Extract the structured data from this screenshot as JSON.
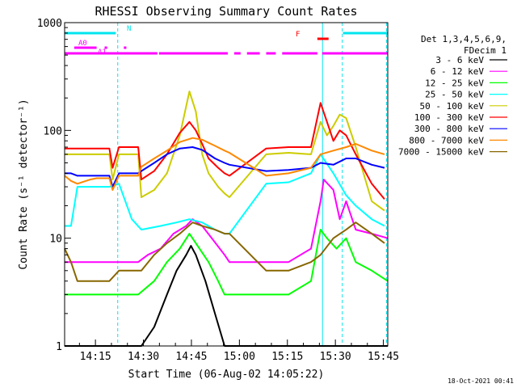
{
  "chart_data": {
    "type": "line",
    "title": "RHESSI Observing Summary Count Rates",
    "xlabel": "Start Time (06-Aug-02 14:05:22)",
    "ylabel": "Count Rate (s⁻¹ detector⁻¹)",
    "x_unit": "minutes after 14:05:22",
    "xlim": [
      0,
      101
    ],
    "ylim": [
      1,
      1000
    ],
    "yscale": "log",
    "grid": false,
    "legend_placement": "right",
    "x_ticks": [
      {
        "value": 9.63,
        "label": "14:15"
      },
      {
        "value": 24.63,
        "label": "14:30"
      },
      {
        "value": 39.63,
        "label": "14:45"
      },
      {
        "value": 54.63,
        "label": "15:00"
      },
      {
        "value": 69.63,
        "label": "15:15"
      },
      {
        "value": 84.63,
        "label": "15:30"
      },
      {
        "value": 99.63,
        "label": "15:45"
      }
    ],
    "y_ticks": [
      {
        "value": 1,
        "label": "1"
      },
      {
        "value": 10,
        "label": "10"
      },
      {
        "value": 100,
        "label": "100"
      },
      {
        "value": 1000,
        "label": "1000"
      }
    ],
    "legend_header": [
      "Det 1,3,4,5,6,9,",
      "FDecim 1"
    ],
    "series": [
      {
        "name": "3 - 6 keV",
        "color": "#000000",
        "values": [
          [
            0,
            1
          ],
          [
            10,
            1
          ],
          [
            24,
            1
          ],
          [
            28,
            1.5
          ],
          [
            32,
            3
          ],
          [
            35,
            5
          ],
          [
            38,
            7
          ],
          [
            39.5,
            8.5
          ],
          [
            41,
            7
          ],
          [
            44,
            4
          ],
          [
            47,
            2
          ],
          [
            50,
            1
          ],
          [
            55,
            1
          ],
          [
            57,
            1
          ],
          [
            78,
            1
          ],
          [
            86,
            1
          ],
          [
            92,
            1
          ],
          [
            101,
            1
          ]
        ]
      },
      {
        "name": "6 - 12 keV",
        "color": "#ff00ff",
        "values": [
          [
            0,
            6
          ],
          [
            8,
            6
          ],
          [
            10,
            6
          ],
          [
            14,
            6
          ],
          [
            23,
            6
          ],
          [
            26,
            7
          ],
          [
            30,
            8
          ],
          [
            34,
            11
          ],
          [
            38,
            13
          ],
          [
            40,
            15
          ],
          [
            43,
            13
          ],
          [
            46,
            10
          ],
          [
            50,
            7
          ],
          [
            51.5,
            6
          ],
          [
            63,
            6
          ],
          [
            70,
            6
          ],
          [
            77,
            8
          ],
          [
            80,
            22
          ],
          [
            81,
            35
          ],
          [
            84,
            28
          ],
          [
            86,
            15
          ],
          [
            88,
            22
          ],
          [
            91,
            12
          ],
          [
            96,
            11
          ],
          [
            101,
            10
          ]
        ]
      },
      {
        "name": "12 - 25 keV",
        "color": "#00ff00",
        "values": [
          [
            0,
            3
          ],
          [
            8,
            3
          ],
          [
            10,
            3
          ],
          [
            14,
            3
          ],
          [
            23,
            3
          ],
          [
            28,
            4
          ],
          [
            32,
            6
          ],
          [
            36,
            8
          ],
          [
            39,
            11
          ],
          [
            41,
            9
          ],
          [
            45,
            6
          ],
          [
            48,
            4
          ],
          [
            50,
            3
          ],
          [
            51.5,
            3
          ],
          [
            63,
            3
          ],
          [
            70,
            3
          ],
          [
            77,
            4
          ],
          [
            80,
            12
          ],
          [
            82,
            10
          ],
          [
            85,
            8
          ],
          [
            88,
            10
          ],
          [
            91,
            6
          ],
          [
            96,
            5
          ],
          [
            101,
            4
          ]
        ]
      },
      {
        "name": "25 - 50 keV",
        "color": "#00ffff",
        "values": [
          [
            0,
            13
          ],
          [
            2,
            13
          ],
          [
            4,
            30
          ],
          [
            8,
            30
          ],
          [
            10,
            30
          ],
          [
            14,
            30
          ],
          [
            17,
            32
          ],
          [
            21,
            15
          ],
          [
            24,
            12
          ],
          [
            30,
            13
          ],
          [
            35,
            14
          ],
          [
            39,
            15
          ],
          [
            43,
            14
          ],
          [
            47,
            12
          ],
          [
            50,
            11
          ],
          [
            51.5,
            11
          ],
          [
            63,
            32
          ],
          [
            70,
            33
          ],
          [
            77,
            40
          ],
          [
            80,
            60
          ],
          [
            84,
            40
          ],
          [
            88,
            25
          ],
          [
            91,
            20
          ],
          [
            96,
            15
          ],
          [
            100,
            13
          ]
        ]
      },
      {
        "name": "50 - 100 keV",
        "color": "#cccc00",
        "values": [
          [
            0,
            60
          ],
          [
            2,
            60
          ],
          [
            4,
            60
          ],
          [
            8,
            60
          ],
          [
            10,
            60
          ],
          [
            14,
            60
          ],
          [
            15,
            35
          ],
          [
            17,
            60
          ],
          [
            23,
            60
          ],
          [
            24,
            24
          ],
          [
            28,
            28
          ],
          [
            32,
            40
          ],
          [
            36,
            90
          ],
          [
            39,
            230
          ],
          [
            41,
            150
          ],
          [
            43,
            60
          ],
          [
            45,
            40
          ],
          [
            48,
            30
          ],
          [
            50,
            26
          ],
          [
            51.5,
            24
          ],
          [
            63,
            60
          ],
          [
            70,
            62
          ],
          [
            77,
            60
          ],
          [
            80,
            120
          ],
          [
            82,
            90
          ],
          [
            84,
            110
          ],
          [
            86,
            140
          ],
          [
            88,
            130
          ],
          [
            91,
            70
          ],
          [
            96,
            22
          ],
          [
            100,
            18
          ]
        ]
      },
      {
        "name": "100 - 300 keV",
        "color": "#ff0000",
        "values": [
          [
            0,
            68
          ],
          [
            2,
            68
          ],
          [
            4,
            68
          ],
          [
            8,
            68
          ],
          [
            10,
            68
          ],
          [
            14,
            68
          ],
          [
            15,
            45
          ],
          [
            17,
            70
          ],
          [
            23,
            70
          ],
          [
            24,
            35
          ],
          [
            28,
            42
          ],
          [
            32,
            60
          ],
          [
            36,
            95
          ],
          [
            39,
            120
          ],
          [
            41,
            100
          ],
          [
            43,
            75
          ],
          [
            45,
            55
          ],
          [
            48,
            45
          ],
          [
            50,
            40
          ],
          [
            51.5,
            38
          ],
          [
            63,
            68
          ],
          [
            70,
            70
          ],
          [
            77,
            70
          ],
          [
            80,
            180
          ],
          [
            82,
            120
          ],
          [
            84,
            80
          ],
          [
            86,
            100
          ],
          [
            88,
            90
          ],
          [
            91,
            60
          ],
          [
            96,
            32
          ],
          [
            100,
            23
          ]
        ]
      },
      {
        "name": "300 - 800 keV",
        "color": "#0000ff",
        "values": [
          [
            0,
            40
          ],
          [
            2,
            40
          ],
          [
            4,
            38
          ],
          [
            8,
            38
          ],
          [
            10,
            38
          ],
          [
            14,
            38
          ],
          [
            15,
            30
          ],
          [
            17,
            40
          ],
          [
            23,
            40
          ],
          [
            24,
            42
          ],
          [
            28,
            50
          ],
          [
            32,
            60
          ],
          [
            36,
            68
          ],
          [
            40,
            70
          ],
          [
            43,
            66
          ],
          [
            47,
            55
          ],
          [
            50,
            50
          ],
          [
            51.5,
            48
          ],
          [
            63,
            42
          ],
          [
            70,
            43
          ],
          [
            77,
            45
          ],
          [
            80,
            50
          ],
          [
            84,
            48
          ],
          [
            88,
            55
          ],
          [
            91,
            55
          ],
          [
            96,
            48
          ],
          [
            100,
            45
          ]
        ]
      },
      {
        "name": "800 - 7000 keV",
        "color": "#ff8800",
        "values": [
          [
            0,
            38
          ],
          [
            2,
            34
          ],
          [
            4,
            32
          ],
          [
            8,
            35
          ],
          [
            10,
            36
          ],
          [
            14,
            36
          ],
          [
            15,
            28
          ],
          [
            17,
            38
          ],
          [
            23,
            38
          ],
          [
            24,
            46
          ],
          [
            28,
            55
          ],
          [
            32,
            65
          ],
          [
            36,
            78
          ],
          [
            40,
            85
          ],
          [
            43,
            82
          ],
          [
            47,
            72
          ],
          [
            50,
            65
          ],
          [
            51.5,
            62
          ],
          [
            63,
            38
          ],
          [
            70,
            40
          ],
          [
            77,
            45
          ],
          [
            80,
            60
          ],
          [
            84,
            65
          ],
          [
            88,
            70
          ],
          [
            91,
            75
          ],
          [
            96,
            65
          ],
          [
            100,
            60
          ]
        ]
      },
      {
        "name": "7000 - 15000 keV",
        "color": "#886600",
        "values": [
          [
            0,
            8
          ],
          [
            2,
            6
          ],
          [
            4,
            4
          ],
          [
            8,
            4
          ],
          [
            10,
            4
          ],
          [
            14,
            4
          ],
          [
            17,
            5
          ],
          [
            23,
            5
          ],
          [
            24,
            5
          ],
          [
            28,
            7
          ],
          [
            32,
            9
          ],
          [
            36,
            11
          ],
          [
            40,
            14
          ],
          [
            43,
            13
          ],
          [
            47,
            12
          ],
          [
            50,
            11
          ],
          [
            51.5,
            11
          ],
          [
            63,
            5
          ],
          [
            70,
            5
          ],
          [
            77,
            6
          ],
          [
            80,
            7
          ],
          [
            84,
            10
          ],
          [
            88,
            12
          ],
          [
            91,
            14
          ],
          [
            96,
            11
          ],
          [
            100,
            9
          ]
        ]
      }
    ],
    "annotations": {
      "bars": [
        {
          "label": "N",
          "color": "#00e5ee",
          "row": "N",
          "segments": [
            [
              0,
              16
            ],
            [
              87,
              101
            ]
          ]
        },
        {
          "label": "A0",
          "color": "#ff00ff",
          "row": "A0",
          "segments": [
            [
              3,
              10
            ],
            [
              12.5,
              13.3
            ],
            [
              18.5,
              19.3
            ]
          ]
        },
        {
          "label": "A1",
          "color": "#ff00ff",
          "row": "A1",
          "segments": [
            [
              0,
              29
            ],
            [
              29.5,
              51
            ],
            [
              53,
              55
            ],
            [
              57,
              61
            ],
            [
              63,
              66
            ],
            [
              68,
              79
            ],
            [
              80.5,
              101
            ]
          ]
        },
        {
          "label": "F",
          "color": "#ff0000",
          "row": "F",
          "segments": [
            [
              79,
              82.5
            ]
          ]
        }
      ],
      "vlines": [
        {
          "x": 0,
          "color": "#00e5ee",
          "style": "solid"
        },
        {
          "x": 16.6,
          "color": "#00e5ee",
          "style": "dashed"
        },
        {
          "x": 80.6,
          "color": "#00e5ee",
          "style": "solid"
        },
        {
          "x": 86.8,
          "color": "#00e5ee",
          "style": "dashed"
        },
        {
          "x": 100.6,
          "color": "#00e5ee",
          "style": "dashed"
        }
      ]
    },
    "timestamp": "18-Oct-2021 00:41"
  }
}
